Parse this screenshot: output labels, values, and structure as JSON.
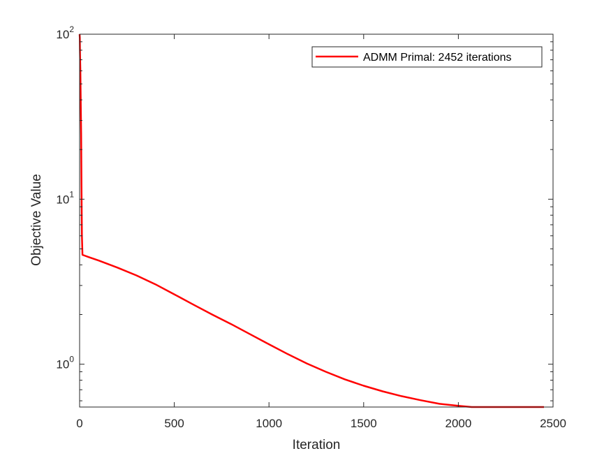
{
  "chart_data": {
    "type": "line",
    "title": "",
    "xlabel": "Iteration",
    "ylabel": "Objective Value",
    "xlim": [
      0,
      2500
    ],
    "ylim": [
      0.55,
      100
    ],
    "yscale": "log",
    "grid": false,
    "legend_position": "top-right",
    "x_ticks": [
      0,
      500,
      1000,
      1500,
      2000,
      2500
    ],
    "y_ticks": [
      {
        "value": 1,
        "base": "10",
        "exponent": "0"
      },
      {
        "value": 10,
        "base": "10",
        "exponent": "1"
      },
      {
        "value": 100,
        "base": "10",
        "exponent": "2"
      }
    ],
    "series": [
      {
        "name": "ADMM Primal: 2452 iterations",
        "color": "#ff0000",
        "x": [
          0,
          1,
          2,
          4,
          6,
          8,
          10,
          12,
          15,
          50,
          100,
          200,
          300,
          400,
          500,
          600,
          700,
          800,
          900,
          1000,
          1100,
          1200,
          1300,
          1400,
          1500,
          1600,
          1700,
          1800,
          1900,
          2000,
          2070,
          2200,
          2300,
          2452
        ],
        "y": [
          100,
          95,
          80,
          60,
          40,
          25,
          12,
          6,
          4.6,
          4.45,
          4.25,
          3.85,
          3.45,
          3.05,
          2.65,
          2.3,
          2.0,
          1.75,
          1.52,
          1.32,
          1.15,
          1.01,
          0.9,
          0.81,
          0.74,
          0.685,
          0.64,
          0.605,
          0.575,
          0.56,
          0.55,
          0.55,
          0.55,
          0.55
        ]
      }
    ]
  }
}
